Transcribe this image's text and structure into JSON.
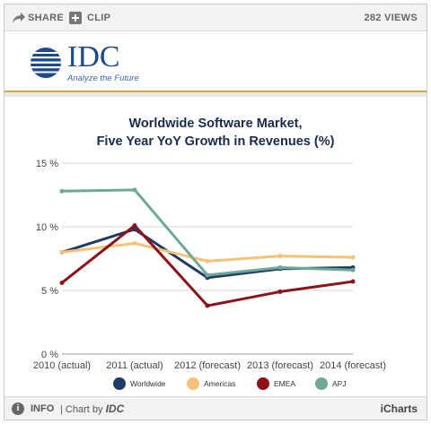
{
  "toolbar": {
    "share_label": "SHARE",
    "clip_label": "CLIP",
    "views_label": "282 VIEWS"
  },
  "logo": {
    "wordmark": "IDC",
    "tagline": "Analyze the Future"
  },
  "footer": {
    "info_label": "INFO",
    "credit_prefix": "| Chart by",
    "credit_brand": "IDC",
    "platform": "iCharts"
  },
  "colors": {
    "Worldwide": "#1f3b66",
    "Americas": "#f5c277",
    "EMEA": "#8e1218",
    "APJ": "#6fa894",
    "accent": "#d8a940"
  },
  "chart_data": {
    "type": "line",
    "title": "Worldwide Software Market,",
    "subtitle": "Five Year YoY Growth in Revenues  (%)",
    "categories": [
      "2010 (actual)",
      "2011 (actual)",
      "2012 (forecast)",
      "2013 (forecast)",
      "2014 (forecast)"
    ],
    "y_ticks": [
      "0 %",
      "5 %",
      "10 %",
      "15 %"
    ],
    "ylim": [
      0,
      15
    ],
    "grid": true,
    "legend_position": "bottom",
    "series": [
      {
        "name": "Worldwide",
        "values": [
          8.0,
          9.8,
          6.0,
          6.7,
          6.8
        ]
      },
      {
        "name": "Americas",
        "values": [
          8.0,
          8.7,
          7.3,
          7.7,
          7.6
        ]
      },
      {
        "name": "EMEA",
        "values": [
          5.6,
          10.1,
          3.8,
          4.9,
          5.7
        ]
      },
      {
        "name": "APJ",
        "values": [
          12.8,
          12.9,
          6.2,
          6.8,
          6.6
        ]
      }
    ]
  }
}
